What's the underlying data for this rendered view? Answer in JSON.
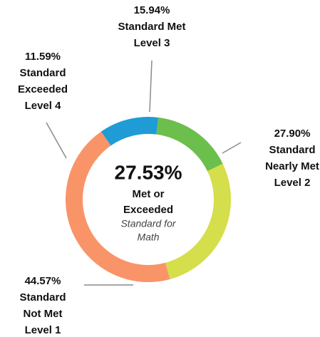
{
  "chart_data": {
    "type": "donut",
    "categories": [
      [
        "Standard Met",
        "Level 3"
      ],
      [
        "Standard",
        "Nearly Met",
        "Level 2"
      ],
      [
        "Standard",
        "Not Met",
        "Level 1"
      ],
      [
        "Standard",
        "Exceeded",
        "Level 4"
      ]
    ],
    "values": [
      15.94,
      27.9,
      44.57,
      11.59
    ],
    "value_labels": [
      "15.94%",
      "27.90%",
      "44.57%",
      "11.59%"
    ],
    "colors": [
      "#6cbf4c",
      "#d5de4b",
      "#f99469",
      "#1f9bd6"
    ],
    "center_label": "27.53%",
    "center_lines": [
      "Met or",
      "Exceeded"
    ],
    "center_sub_lines": [
      "Standard for",
      "Math"
    ]
  }
}
